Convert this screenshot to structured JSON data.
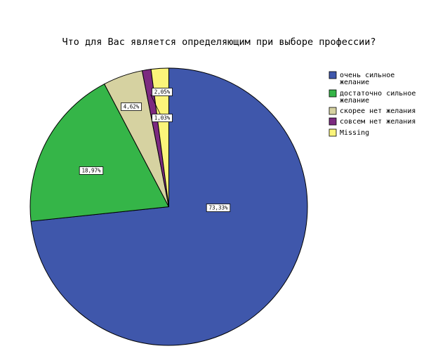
{
  "chart_data": {
    "type": "pie",
    "title": "Что для Вас является определяющим при выборе профессии?",
    "slices": [
      {
        "label": "очень сильное желание",
        "legend_lines": [
          "очень сильное",
          "желание"
        ],
        "value": 73.33,
        "value_label": "73,33%",
        "color": "#3f57ab"
      },
      {
        "label": "достаточно сильное желание",
        "legend_lines": [
          "достаточно сильное",
          "желание"
        ],
        "value": 18.97,
        "value_label": "18,97%",
        "color": "#35b548"
      },
      {
        "label": "скорее нет желания",
        "legend_lines": [
          "скорее нет желания"
        ],
        "value": 4.62,
        "value_label": "4,62%",
        "color": "#d6d2a1"
      },
      {
        "label": "совсем нет желания",
        "legend_lines": [
          "совсем нет желания"
        ],
        "value": 1.03,
        "value_label": "1,03%",
        "color": "#7c2a80"
      },
      {
        "label": "Missing",
        "legend_lines": [
          "Missing"
        ],
        "value": 2.05,
        "value_label": "2,05%",
        "color": "#fbf47a"
      }
    ],
    "legend_position": "right"
  }
}
